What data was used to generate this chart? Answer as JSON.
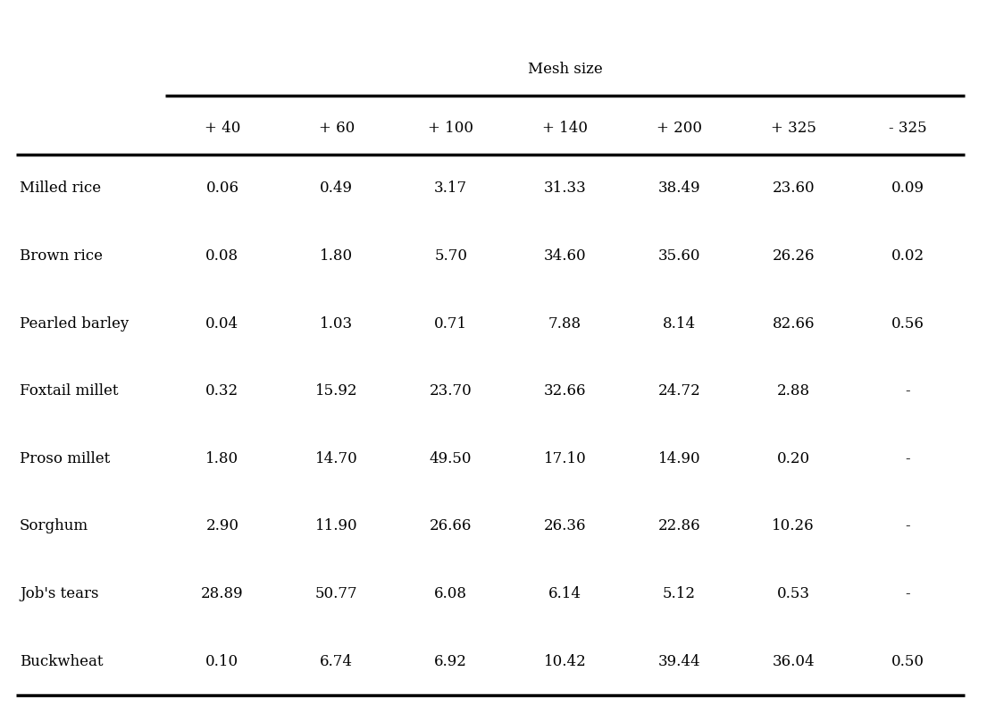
{
  "title": "Mesh size",
  "col_headers": [
    "+ 40",
    "+ 60",
    "+ 100",
    "+ 140",
    "+ 200",
    "+ 325",
    "- 325"
  ],
  "row_labels": [
    "Milled rice",
    "Brown rice",
    "Pearled barley",
    "Foxtail millet",
    "Proso millet",
    "Sorghum",
    "Job's tears",
    "Buckwheat"
  ],
  "data": [
    [
      "0.06",
      "0.49",
      "3.17",
      "31.33",
      "38.49",
      "23.60",
      "0.09"
    ],
    [
      "0.08",
      "1.80",
      "5.70",
      "34.60",
      "35.60",
      "26.26",
      "0.02"
    ],
    [
      "0.04",
      "1.03",
      "0.71",
      "7.88",
      "8.14",
      "82.66",
      "0.56"
    ],
    [
      "0.32",
      "15.92",
      "23.70",
      "32.66",
      "24.72",
      "2.88",
      "-"
    ],
    [
      "1.80",
      "14.70",
      "49.50",
      "17.10",
      "14.90",
      "0.20",
      "-"
    ],
    [
      "2.90",
      "11.90",
      "26.66",
      "26.36",
      "22.86",
      "10.26",
      "-"
    ],
    [
      "28.89",
      "50.77",
      "6.08",
      "6.14",
      "5.12",
      "0.53",
      "-"
    ],
    [
      "0.10",
      "6.74",
      "6.92",
      "10.42",
      "39.44",
      "36.04",
      "0.50"
    ]
  ],
  "background_color": "#ffffff",
  "text_color": "#000000",
  "font_size": 12,
  "title_font_size": 12,
  "figsize": [
    11.05,
    8.08
  ],
  "dpi": 100
}
